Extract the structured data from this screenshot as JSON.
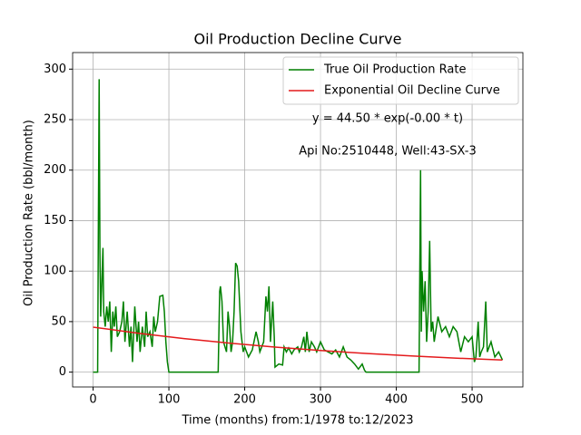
{
  "chart_data": {
    "type": "line",
    "title": "Oil Production Decline Curve",
    "xlabel": "Time (months) from:1/1978 to:12/2023",
    "ylabel": "Oil Production Rate (bbl/month)",
    "annotations": [
      "y = 44.50 * exp(-0.00 * t)",
      "Api No:2510448, Well:43-SX-3"
    ],
    "xlim": [
      -27,
      567
    ],
    "xticks": [
      0,
      100,
      200,
      300,
      400,
      500
    ],
    "ylim": [
      -14.7,
      316.4
    ],
    "yticks": [
      0,
      50,
      100,
      150,
      200,
      250,
      300
    ],
    "grid": true,
    "legend": "upper right",
    "series": [
      {
        "name": "True Oil Production Rate",
        "color": "#008000",
        "x": [
          0,
          6,
          7,
          8,
          9,
          10,
          12,
          13,
          14,
          16,
          18,
          20,
          22,
          24,
          26,
          28,
          30,
          32,
          35,
          38,
          40,
          42,
          45,
          48,
          50,
          52,
          55,
          58,
          60,
          62,
          65,
          68,
          70,
          72,
          75,
          78,
          80,
          82,
          85,
          88,
          92,
          94,
          96,
          98,
          100,
          165,
          167,
          168,
          170,
          172,
          176,
          178,
          180,
          182,
          184,
          186,
          188,
          190,
          192,
          195,
          198,
          200,
          205,
          210,
          215,
          218,
          220,
          225,
          228,
          230,
          232,
          234,
          237,
          239,
          240,
          245,
          250,
          252,
          255,
          258,
          262,
          265,
          270,
          272,
          275,
          278,
          280,
          282,
          285,
          288,
          292,
          295,
          300,
          305,
          310,
          315,
          320,
          325,
          330,
          335,
          340,
          345,
          350,
          355,
          358,
          360,
          430,
          431,
          432,
          433,
          434,
          436,
          438,
          440,
          442,
          444,
          446,
          448,
          450,
          455,
          460,
          465,
          470,
          475,
          480,
          485,
          490,
          495,
          500,
          503,
          505,
          508,
          510,
          512,
          515,
          518,
          520,
          525,
          530,
          535,
          540
        ],
        "values": [
          0,
          0,
          150,
          290,
          120,
          55,
          100,
          123,
          60,
          45,
          65,
          50,
          70,
          20,
          60,
          45,
          65,
          35,
          40,
          50,
          70,
          30,
          60,
          25,
          45,
          10,
          65,
          30,
          50,
          20,
          45,
          25,
          60,
          35,
          40,
          25,
          55,
          40,
          50,
          75,
          76,
          60,
          30,
          10,
          0,
          0,
          80,
          85,
          70,
          30,
          20,
          60,
          45,
          20,
          30,
          60,
          108,
          105,
          90,
          40,
          20,
          25,
          15,
          22,
          40,
          30,
          20,
          30,
          75,
          60,
          85,
          30,
          70,
          35,
          5,
          8,
          7,
          25,
          20,
          24,
          18,
          22,
          25,
          20,
          25,
          35,
          20,
          40,
          20,
          30,
          25,
          20,
          30,
          22,
          20,
          18,
          22,
          15,
          25,
          15,
          12,
          8,
          3,
          8,
          2,
          0,
          0,
          100,
          200,
          40,
          100,
          60,
          90,
          30,
          60,
          130,
          40,
          50,
          30,
          55,
          40,
          45,
          35,
          45,
          40,
          20,
          35,
          30,
          35,
          10,
          15,
          50,
          15,
          20,
          25,
          70,
          20,
          30,
          15,
          20,
          12
        ]
      },
      {
        "name": "Exponential Oil Decline Curve",
        "color": "#e41a1c",
        "x": [
          0,
          60,
          120,
          180,
          240,
          300,
          360,
          420,
          480,
          540
        ],
        "values": [
          44.5,
          38.5,
          33.2,
          28.7,
          24.8,
          21.4,
          18.5,
          16.0,
          13.8,
          12.0
        ]
      }
    ]
  }
}
